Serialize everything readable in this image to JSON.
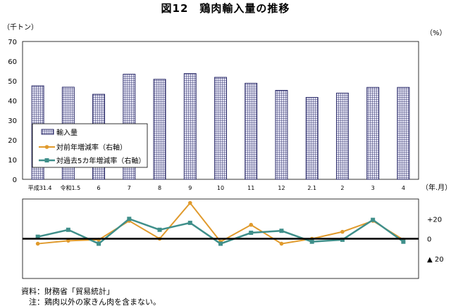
{
  "title": "図12　鶏肉輸入量の推移",
  "unit_left": "（千トン）",
  "unit_right": "（%）",
  "x_unit": "（年.月）",
  "notes": {
    "source": "資料：財務省「貿易統計」",
    "caveat": "　注：鶏肉以外の家きん肉を含まない。"
  },
  "colors": {
    "bar_line": "#1c1c5e",
    "bar_fill": "#e6e6f5",
    "yoy": "#e09a2c",
    "five_year": "#3f8f8a",
    "zero_line": "#000000"
  },
  "chart_data": [
    {
      "type": "bar",
      "categories": [
        "平成31.4",
        "令和1.5",
        "6",
        "7",
        "8",
        "9",
        "10",
        "11",
        "12",
        "2.1",
        "2",
        "3",
        "4"
      ],
      "series": [
        {
          "name": "輸入量",
          "values": [
            47.5,
            46.8,
            43.2,
            53.4,
            50.8,
            53.7,
            51.8,
            48.8,
            45.2,
            41.6,
            43.8,
            46.7,
            46.7
          ]
        }
      ],
      "ylim": [
        0,
        70
      ],
      "yticks": [
        0,
        10,
        20,
        30,
        40,
        50,
        60,
        70
      ],
      "ylabel": "（千トン）",
      "xlabel": "（年.月）",
      "grid": false,
      "legend_position": "lower-left"
    },
    {
      "type": "line",
      "categories": [
        "平成31.4",
        "令和1.5",
        "6",
        "7",
        "8",
        "9",
        "10",
        "11",
        "12",
        "2.1",
        "2",
        "3",
        "4"
      ],
      "series": [
        {
          "name": "対前年増減率（右軸）",
          "values": [
            -5,
            -2,
            -1,
            18,
            0,
            36,
            -3,
            14,
            -5,
            0,
            7,
            18,
            -1
          ]
        },
        {
          "name": "対過去5カ年増減率（右軸）",
          "values": [
            2,
            9,
            -5,
            20,
            9,
            16,
            -5,
            6,
            8,
            -3,
            -1,
            19,
            -3
          ]
        }
      ],
      "ylim": [
        -40,
        40
      ],
      "yticks": [
        {
          "value": 20,
          "label": "+20"
        },
        {
          "value": 0,
          "label": "0"
        },
        {
          "value": -20,
          "label": "▲ 20"
        }
      ],
      "ylabel": "（%）",
      "grid": false
    }
  ]
}
